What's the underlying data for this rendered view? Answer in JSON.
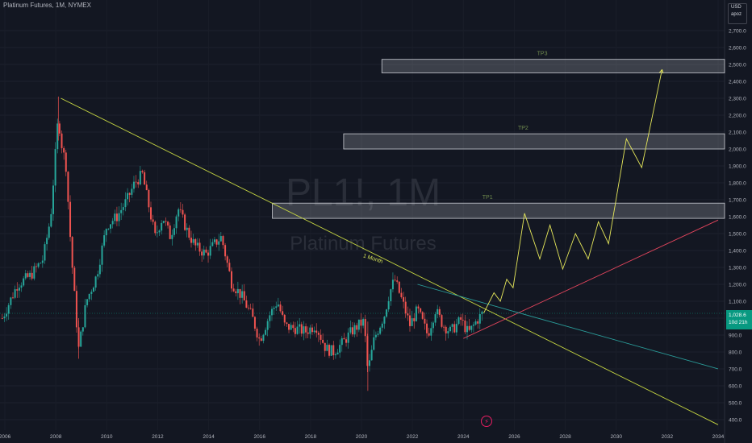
{
  "header": {
    "symbol_line": "Platinum Futures, 1M, NYMEX"
  },
  "currency_box": {
    "currency": "USD",
    "scale": "apoz"
  },
  "watermark": {
    "ticker": "PL1!, 1M",
    "name": "Platinum Futures"
  },
  "price_tag": {
    "price": "1,028.6",
    "countdown": "10d 21h"
  },
  "icons": {
    "event": "lightning-bolt-icon"
  },
  "colors": {
    "background": "#131722",
    "up_candle": "#26a69a",
    "down_candle": "#ef5350",
    "trendline_yellow": "#c6d642",
    "projection": "#e6e85a",
    "support_red": "#e0445c",
    "channel_teal": "#2a9d9a",
    "zone_fill": "#d1d4dc",
    "price_tag": "#089981"
  },
  "chart_data": {
    "type": "candlestick",
    "title": "Platinum Futures, 1M, NYMEX",
    "x_axis": {
      "labels": [
        "2006",
        "2008",
        "2010",
        "2012",
        "2014",
        "2016",
        "2018",
        "2020",
        "2022",
        "2024",
        "2026",
        "2028",
        "2030",
        "2032",
        "2034"
      ]
    },
    "y_axis": {
      "range": [
        370,
        2730
      ],
      "ticks": [
        400,
        500,
        600,
        700,
        800,
        900,
        1000,
        1100,
        1200,
        1300,
        1400,
        1500,
        1600,
        1700,
        1800,
        1900,
        2000,
        2100,
        2200,
        2300,
        2400,
        2500,
        2600,
        2700
      ],
      "tick_labels": [
        "400.0",
        "500.0",
        "600.0",
        "700.0",
        "800.0",
        "900.0",
        "1,000.0",
        "1,100.0",
        "1,200.0",
        "1,300.0",
        "1,400.0",
        "1,500.0",
        "1,600.0",
        "1,700.0",
        "1,800.0",
        "1,900.0",
        "2,000.0",
        "2,100.0",
        "2,200.0",
        "2,300.0",
        "2,400.0",
        "2,500.0",
        "2,600.0",
        "2,700.0"
      ],
      "position": "right"
    },
    "price_path": [
      [
        2005.9,
        1000
      ],
      [
        2006.5,
        1200
      ],
      [
        2007.0,
        1250
      ],
      [
        2007.5,
        1350
      ],
      [
        2007.8,
        1600
      ],
      [
        2008.0,
        2000
      ],
      [
        2008.1,
        2200
      ],
      [
        2008.2,
        2050
      ],
      [
        2008.4,
        1900
      ],
      [
        2008.6,
        1400
      ],
      [
        2008.8,
        1000
      ],
      [
        2008.9,
        820
      ],
      [
        2009.2,
        1100
      ],
      [
        2009.6,
        1250
      ],
      [
        2010.0,
        1550
      ],
      [
        2010.4,
        1600
      ],
      [
        2010.8,
        1700
      ],
      [
        2011.1,
        1800
      ],
      [
        2011.4,
        1850
      ],
      [
        2011.6,
        1700
      ],
      [
        2011.9,
        1480
      ],
      [
        2012.2,
        1600
      ],
      [
        2012.5,
        1480
      ],
      [
        2012.8,
        1650
      ],
      [
        2013.2,
        1500
      ],
      [
        2013.5,
        1420
      ],
      [
        2013.9,
        1380
      ],
      [
        2014.3,
        1450
      ],
      [
        2014.5,
        1480
      ],
      [
        2014.9,
        1210
      ],
      [
        2015.3,
        1130
      ],
      [
        2015.7,
        1010
      ],
      [
        2016.0,
        870
      ],
      [
        2016.4,
        1020
      ],
      [
        2016.7,
        1100
      ],
      [
        2017.0,
        950
      ],
      [
        2017.4,
        940
      ],
      [
        2017.8,
        920
      ],
      [
        2018.2,
        960
      ],
      [
        2018.6,
        820
      ],
      [
        2018.9,
        800
      ],
      [
        2019.3,
        860
      ],
      [
        2019.6,
        920
      ],
      [
        2019.9,
        960
      ],
      [
        2020.1,
        980
      ],
      [
        2020.25,
        680
      ],
      [
        2020.5,
        880
      ],
      [
        2020.9,
        1020
      ],
      [
        2021.1,
        1150
      ],
      [
        2021.3,
        1230
      ],
      [
        2021.6,
        1100
      ],
      [
        2021.9,
        960
      ],
      [
        2022.2,
        1050
      ],
      [
        2022.6,
        900
      ],
      [
        2022.9,
        1050
      ],
      [
        2023.2,
        960
      ],
      [
        2023.5,
        920
      ],
      [
        2023.9,
        990
      ],
      [
        2024.2,
        910
      ],
      [
        2024.5,
        980
      ],
      [
        2024.75,
        1028.6
      ]
    ],
    "annotations": [
      {
        "type": "zone",
        "label": "TP3",
        "x_start": 2020.8,
        "x_end": 2034,
        "y_low": 2450,
        "y_high": 2530
      },
      {
        "type": "zone",
        "label": "TP2",
        "x_start": 2019.3,
        "x_end": 2034,
        "y_low": 2000,
        "y_high": 2090
      },
      {
        "type": "zone",
        "label": "TP1",
        "x_start": 2016.5,
        "x_end": 2034,
        "y_low": 1590,
        "y_high": 1680
      },
      {
        "type": "trendline",
        "label": "1 Month",
        "points": [
          [
            2008.2,
            2300
          ],
          [
            2034,
            370
          ]
        ]
      },
      {
        "type": "trendline",
        "label": "",
        "points": [
          [
            2024.0,
            880
          ],
          [
            2034,
            1580
          ]
        ]
      },
      {
        "type": "trendline",
        "label": "",
        "points": [
          [
            2022.2,
            1200
          ],
          [
            2034,
            700
          ]
        ]
      },
      {
        "type": "projection",
        "label": "",
        "points": [
          [
            2024.8,
            1030
          ],
          [
            2025.2,
            1150
          ],
          [
            2025.45,
            1100
          ],
          [
            2025.7,
            1230
          ],
          [
            2025.95,
            1180
          ],
          [
            2026.4,
            1620
          ],
          [
            2027.0,
            1350
          ],
          [
            2027.4,
            1550
          ],
          [
            2027.9,
            1290
          ],
          [
            2028.4,
            1500
          ],
          [
            2028.9,
            1350
          ],
          [
            2029.3,
            1570
          ],
          [
            2029.7,
            1440
          ],
          [
            2030.4,
            2060
          ],
          [
            2031.0,
            1890
          ],
          [
            2031.8,
            2470
          ]
        ]
      }
    ]
  }
}
